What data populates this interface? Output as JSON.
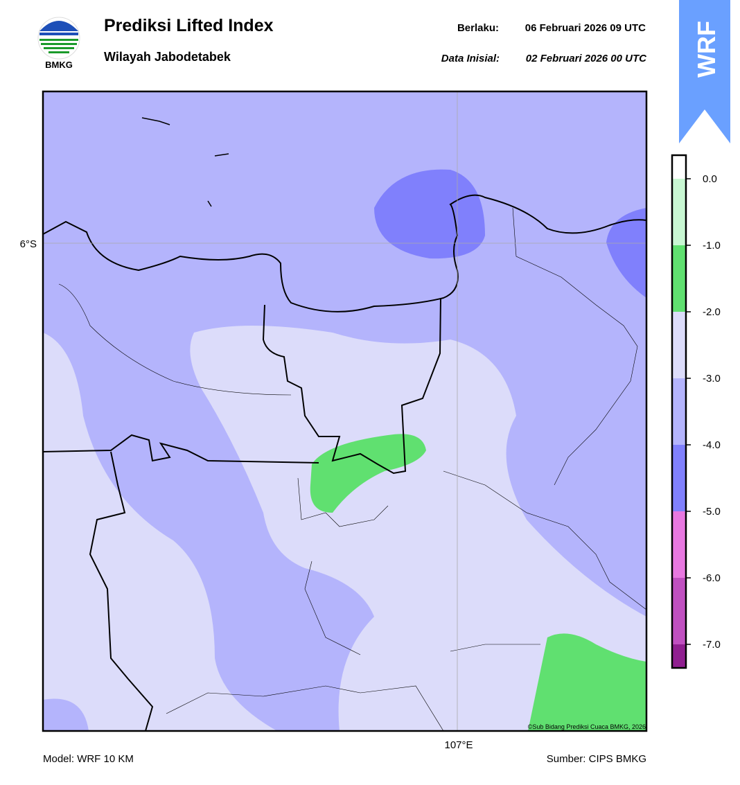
{
  "header": {
    "logo_text": "BMKG",
    "title": "Prediksi Lifted Index",
    "subtitle": "Wilayah Jabodetabek",
    "valid_label": "Berlaku:",
    "valid_time": "06 Februari 2026 09 UTC",
    "init_label": "Data Inisial:",
    "init_time": "02 Februari 2026 00 UTC",
    "badge": "WRF"
  },
  "map": {
    "lat_label": "6°S",
    "lon_label": "107°E",
    "credit": "©Sub Bidang Prediksi Cuaca BMKG, 2026"
  },
  "colorbar": {
    "ticks": [
      {
        "value": 0,
        "label": "0.0"
      },
      {
        "value": -1,
        "label": "-1.0"
      },
      {
        "value": -2,
        "label": "-2.0"
      },
      {
        "value": -3,
        "label": "-3.0"
      },
      {
        "value": -4,
        "label": "-4.0"
      },
      {
        "value": -5,
        "label": "-5.0"
      },
      {
        "value": -6,
        "label": "-6.0"
      },
      {
        "value": -7,
        "label": "-7.0"
      }
    ]
  },
  "footer": {
    "model": "Model: WRF 10 KM",
    "source": "Sumber: CIPS BMKG"
  }
}
